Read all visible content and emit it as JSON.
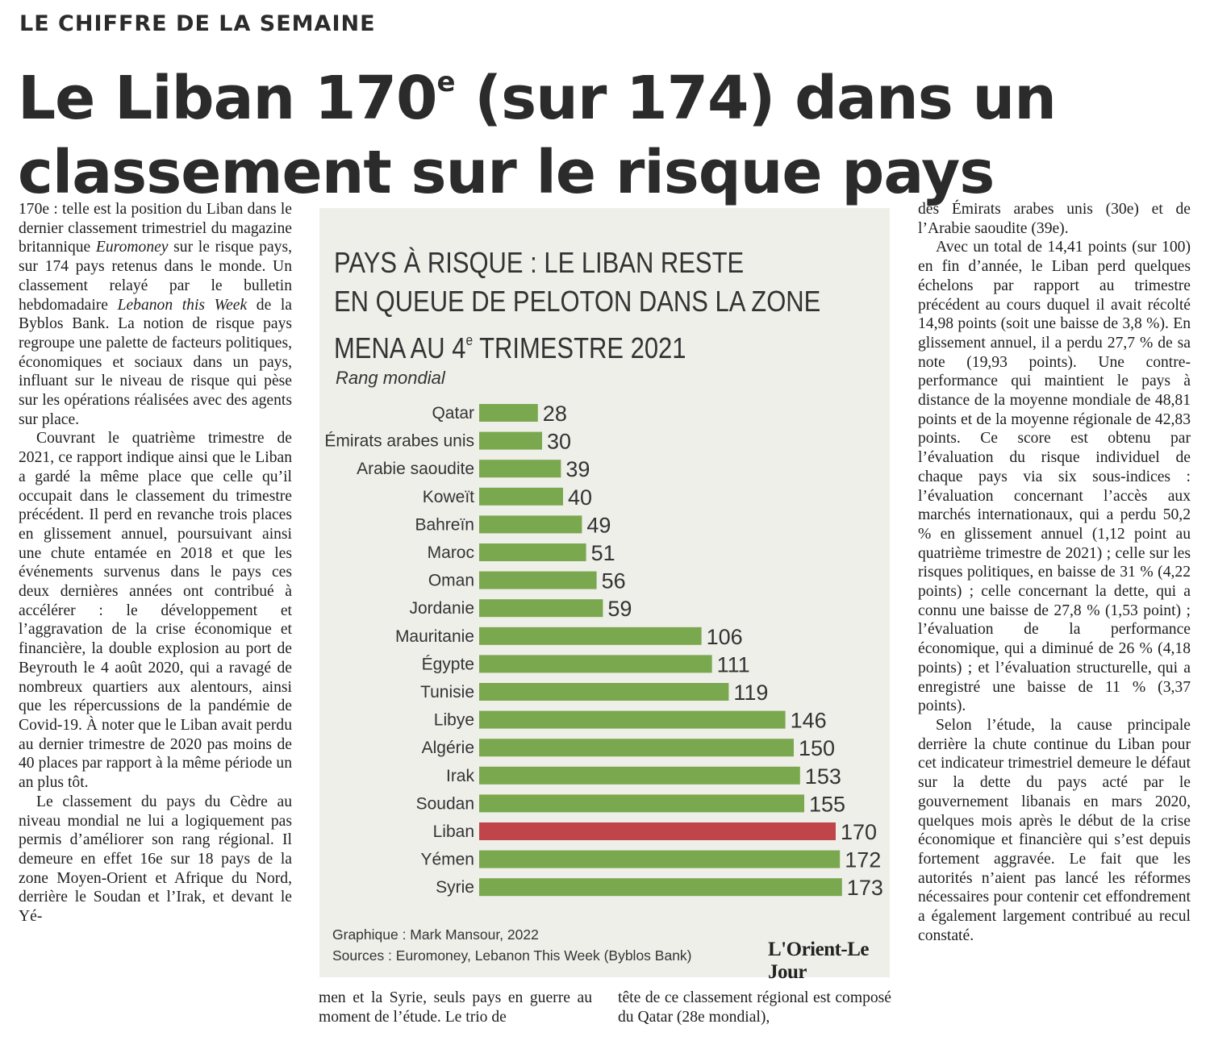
{
  "article": {
    "kicker": "LE CHIFFRE DE LA SEMAINE",
    "headline_a": "Le Liban 170",
    "headline_sup": "e",
    "headline_b": " (sur 174) dans un classement sur le risque pays",
    "col1": {
      "p1_a": "170e : telle est la position du Liban dans le dernier classement trimestriel du magazine britannique ",
      "p1_em1": "Euromoney",
      "p1_b": " sur le risque pays, sur 174 pays retenus dans le monde. Un classement relayé par le bulletin hebdomadaire ",
      "p1_em2": "Lebanon this Week",
      "p1_c": " de la Byblos Bank. La notion de risque pays regroupe une palette de facteurs politiques, économiques et sociaux dans un pays, influant sur le niveau de risque qui pèse sur les opérations réalisées avec des agents sur place.",
      "p2": "Couvrant le quatrième trimestre de 2021, ce rapport indique ainsi que le Liban a gardé la même place que celle qu’il occupait dans le classement du trimestre précédent. Il perd en revanche trois places en glissement annuel, poursuivant ainsi une chute entamée en 2018 et que les événements survenus dans le pays ces deux dernières années ont contribué à accélérer : le développement et l’aggravation de la crise économique et financière, la double explosion au port de Beyrouth le 4 août 2020, qui a ravagé de nombreux quartiers aux alentours, ainsi que les répercussions de la pandémie de Covid-19. À noter que le Liban avait perdu au dernier trimestre de 2020 pas moins de 40 places par rapport à la même période un an plus tôt.",
      "p3": "Le classement du pays du Cèdre au niveau mondial ne lui a logiquement pas permis d’améliorer son rang régional. Il demeure en effet 16e sur 18 pays de la zone Moyen-Orient et Afrique du Nord, derrière le Soudan et l’Irak, et devant le Yé-"
    },
    "col2_bottom": "men et la Syrie, seuls pays en guerre au moment de l’étude. Le trio de",
    "col3_bottom": "tête de ce classement régional est composé du Qatar (28e mondial),",
    "col4": {
      "p1": "des Émirats arabes unis (30e) et de l’Arabie saoudite (39e).",
      "p2": "Avec un total de 14,41 points (sur 100) en fin d’année, le Liban perd quelques échelons par rapport au trimestre précédent au cours duquel il avait récolté 14,98 points (soit une baisse de 3,8 %). En glissement annuel, il a perdu 27,7 % de sa note (19,93 points). Une contre-performance qui maintient le pays à distance de la moyenne mondiale de 48,81 points et de la moyenne régionale de 42,83 points. Ce score est obtenu par l’évaluation du risque individuel de chaque pays via six sous-indices : l’évaluation concernant l’accès aux marchés internationaux, qui a perdu 50,2 % en glissement annuel (1,12 point au quatrième trimestre de 2021) ; celle sur les risques politiques, en baisse de 31 % (4,22 points) ; celle concernant la dette, qui a connu une baisse de 27,8 % (1,53 point) ; l’évaluation de la performance économique, qui a diminué de 26 % (4,18 points) ; et l’évaluation structurelle, qui a enregistré une baisse de 11 % (3,37 points).",
      "p3": "Selon l’étude, la cause principale derrière la chute continue du Liban pour cet indicateur trimestriel demeure le défaut sur la dette du pays acté par le gouvernement libanais en mars 2020, quelques mois après le début de la crise économique et financière qui s’est depuis fortement aggravée. Le fait que les autorités n’aient pas lancé les réformes nécessaires pour contenir cet effondrement a également largement contribué au recul constaté."
    }
  },
  "chart_data": {
    "type": "bar",
    "orientation": "horizontal",
    "title_line1": "PAYS À RISQUE : LE LIBAN RESTE",
    "title_line2": "EN QUEUE DE PELOTON DANS LA ZONE",
    "title_line3_a": "MENA AU 4",
    "title_line3_sup": "e",
    "title_line3_b": " TRIMESTRE 2021",
    "subtitle": "Rang mondial",
    "categories": [
      "Qatar",
      "Émirats arabes unis",
      "Arabie saoudite",
      "Koweït",
      "Bahreïn",
      "Maroc",
      "Oman",
      "Jordanie",
      "Mauritanie",
      "Égypte",
      "Tunisie",
      "Libye",
      "Algérie",
      "Irak",
      "Soudan",
      "Liban",
      "Yémen",
      "Syrie"
    ],
    "values": [
      28,
      30,
      39,
      40,
      49,
      51,
      56,
      59,
      106,
      111,
      119,
      146,
      150,
      153,
      155,
      170,
      172,
      173
    ],
    "highlight": "Liban",
    "colors": {
      "bar": "#7aa84f",
      "highlight": "#c0454a",
      "panel": "#efefea",
      "text": "#333333"
    },
    "credit": "Graphique : Mark Mansour, 2022",
    "sources": "Sources : Euromoney, Lebanon This Week (Byblos Bank)",
    "logo": "L'Orient-Le Jour"
  }
}
